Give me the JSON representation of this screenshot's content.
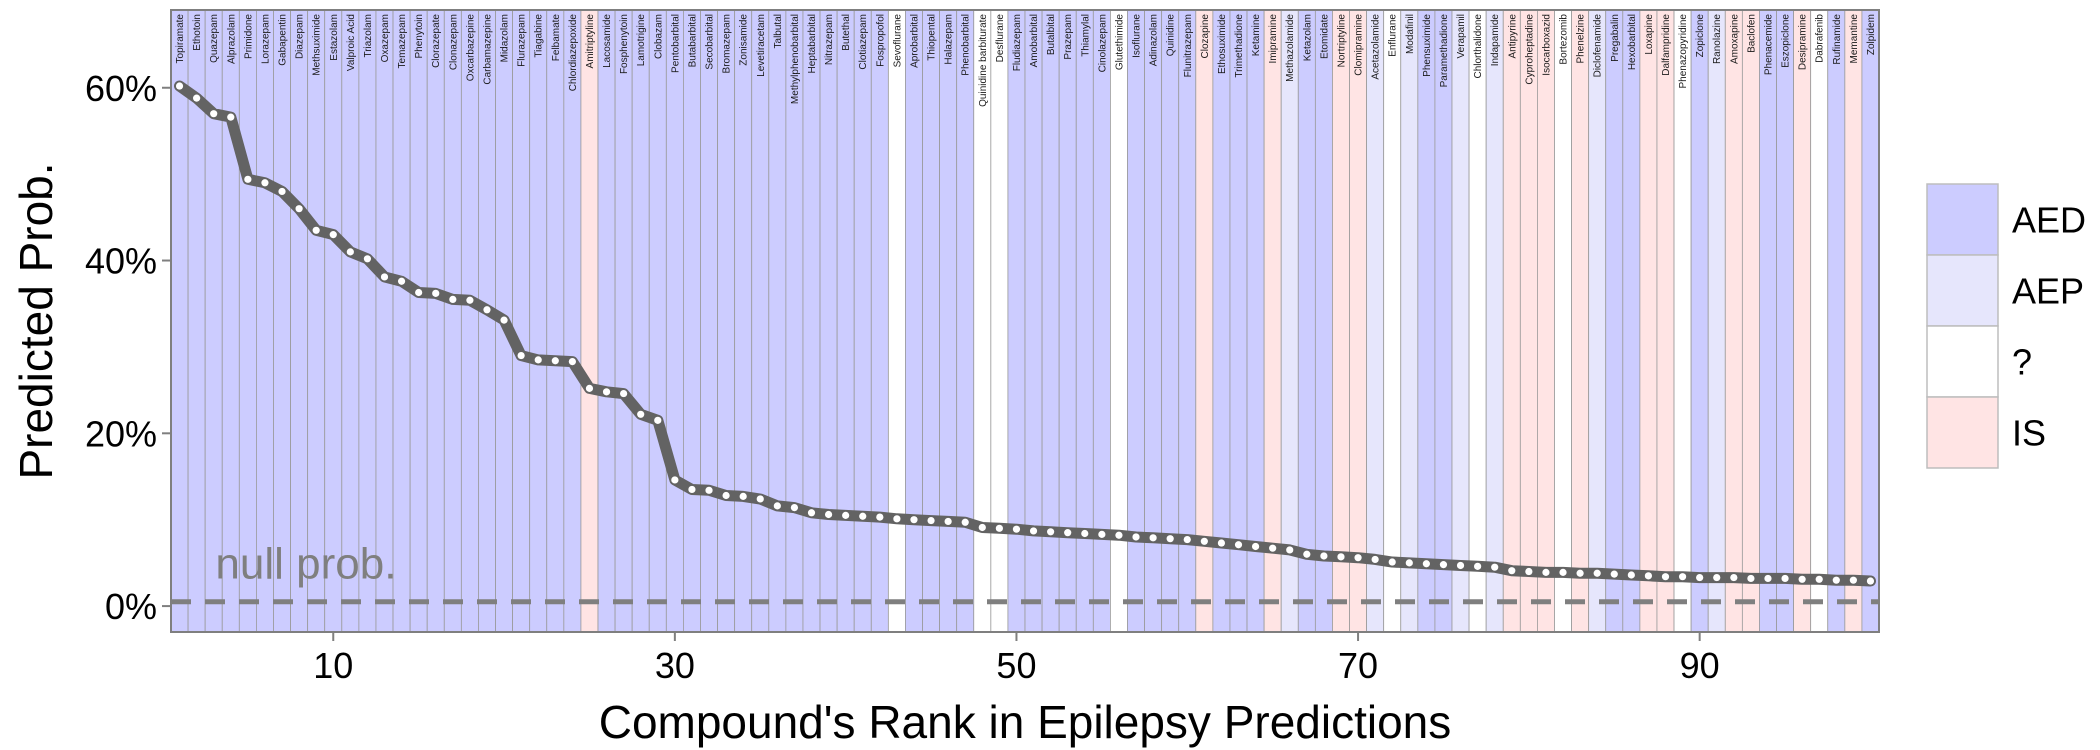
{
  "chart_data": {
    "type": "line",
    "xlabel": "Compound's Rank in Epilepsy Predictions",
    "ylabel": "Predicted Prob.",
    "xlim": [
      0.5,
      100.5
    ],
    "ylim": [
      -0.03,
      0.69
    ],
    "x_ticks": [
      10,
      30,
      50,
      70,
      90
    ],
    "y_ticks": [
      0,
      0.2,
      0.4,
      0.6
    ],
    "y_tick_labels": [
      "0%",
      "20%",
      "40%",
      "60%"
    ],
    "null_prob": 0.005,
    "null_label": "null prob.",
    "legend": {
      "position": "right",
      "items": [
        {
          "key": "AED",
          "label": "AED",
          "color": "#ccccff"
        },
        {
          "key": "AEP",
          "label": "AEP",
          "color": "#e6e6fc"
        },
        {
          "key": "?",
          "label": "?",
          "color": "#ffffff"
        },
        {
          "key": "IS",
          "label": "IS",
          "color": "#ffe4e4"
        }
      ]
    },
    "compounds": [
      {
        "rank": 1,
        "name": "Topiramate",
        "class": "AED",
        "prob": 0.602
      },
      {
        "rank": 2,
        "name": "Ethotoin",
        "class": "AED",
        "prob": 0.588
      },
      {
        "rank": 3,
        "name": "Quazepam",
        "class": "AED",
        "prob": 0.57
      },
      {
        "rank": 4,
        "name": "Alprazolam",
        "class": "AED",
        "prob": 0.566
      },
      {
        "rank": 5,
        "name": "Primidone",
        "class": "AED",
        "prob": 0.494
      },
      {
        "rank": 6,
        "name": "Lorazepam",
        "class": "AED",
        "prob": 0.49
      },
      {
        "rank": 7,
        "name": "Gabapentin",
        "class": "AED",
        "prob": 0.48
      },
      {
        "rank": 8,
        "name": "Diazepam",
        "class": "AED",
        "prob": 0.46
      },
      {
        "rank": 9,
        "name": "Methsuximide",
        "class": "AED",
        "prob": 0.435
      },
      {
        "rank": 10,
        "name": "Estazolam",
        "class": "AED",
        "prob": 0.43
      },
      {
        "rank": 11,
        "name": "Valproic Acid",
        "class": "AED",
        "prob": 0.41
      },
      {
        "rank": 12,
        "name": "Triazolam",
        "class": "AED",
        "prob": 0.402
      },
      {
        "rank": 13,
        "name": "Oxazepam",
        "class": "AED",
        "prob": 0.381
      },
      {
        "rank": 14,
        "name": "Temazepam",
        "class": "AED",
        "prob": 0.376
      },
      {
        "rank": 15,
        "name": "Phenytoin",
        "class": "AED",
        "prob": 0.363
      },
      {
        "rank": 16,
        "name": "Clorazepate",
        "class": "AED",
        "prob": 0.362
      },
      {
        "rank": 17,
        "name": "Clonazepam",
        "class": "AED",
        "prob": 0.355
      },
      {
        "rank": 18,
        "name": "Oxcarbazepine",
        "class": "AED",
        "prob": 0.354
      },
      {
        "rank": 19,
        "name": "Carbamazepine",
        "class": "AED",
        "prob": 0.343
      },
      {
        "rank": 20,
        "name": "Midazolam",
        "class": "AED",
        "prob": 0.331
      },
      {
        "rank": 21,
        "name": "Flurazepam",
        "class": "AED",
        "prob": 0.29
      },
      {
        "rank": 22,
        "name": "Tiagabine",
        "class": "AED",
        "prob": 0.285
      },
      {
        "rank": 23,
        "name": "Felbamate",
        "class": "AED",
        "prob": 0.284
      },
      {
        "rank": 24,
        "name": "Chlordiazepoxide",
        "class": "AED",
        "prob": 0.283
      },
      {
        "rank": 25,
        "name": "Amitriptyline",
        "class": "IS",
        "prob": 0.252
      },
      {
        "rank": 26,
        "name": "Lacosamide",
        "class": "AED",
        "prob": 0.248
      },
      {
        "rank": 27,
        "name": "Fosphenytoin",
        "class": "AED",
        "prob": 0.246
      },
      {
        "rank": 28,
        "name": "Lamotrigine",
        "class": "AED",
        "prob": 0.222
      },
      {
        "rank": 29,
        "name": "Clobazam",
        "class": "AED",
        "prob": 0.215
      },
      {
        "rank": 30,
        "name": "Pentobarbital",
        "class": "AED",
        "prob": 0.146
      },
      {
        "rank": 31,
        "name": "Butabarbital",
        "class": "AED",
        "prob": 0.135
      },
      {
        "rank": 32,
        "name": "Secobarbital",
        "class": "AED",
        "prob": 0.134
      },
      {
        "rank": 33,
        "name": "Bromazepam",
        "class": "AED",
        "prob": 0.128
      },
      {
        "rank": 34,
        "name": "Zonisamide",
        "class": "AED",
        "prob": 0.127
      },
      {
        "rank": 35,
        "name": "Levetiracetam",
        "class": "AED",
        "prob": 0.124
      },
      {
        "rank": 36,
        "name": "Talbutal",
        "class": "AED",
        "prob": 0.116
      },
      {
        "rank": 37,
        "name": "Methylphenobarbital",
        "class": "AED",
        "prob": 0.114
      },
      {
        "rank": 38,
        "name": "Heptabarbital",
        "class": "AED",
        "prob": 0.108
      },
      {
        "rank": 39,
        "name": "Nitrazepam",
        "class": "AED",
        "prob": 0.106
      },
      {
        "rank": 40,
        "name": "Butethal",
        "class": "AED",
        "prob": 0.105
      },
      {
        "rank": 41,
        "name": "Clotiazepam",
        "class": "AED",
        "prob": 0.104
      },
      {
        "rank": 42,
        "name": "Fospropofol",
        "class": "AED",
        "prob": 0.103
      },
      {
        "rank": 43,
        "name": "Sevoflurane",
        "class": "?",
        "prob": 0.101
      },
      {
        "rank": 44,
        "name": "Aprobarbital",
        "class": "AED",
        "prob": 0.1
      },
      {
        "rank": 45,
        "name": "Thiopental",
        "class": "AED",
        "prob": 0.099
      },
      {
        "rank": 46,
        "name": "Halazepam",
        "class": "AED",
        "prob": 0.098
      },
      {
        "rank": 47,
        "name": "Phenobarbital",
        "class": "AED",
        "prob": 0.097
      },
      {
        "rank": 48,
        "name": "Quinidine barbiturate",
        "class": "?",
        "prob": 0.091
      },
      {
        "rank": 49,
        "name": "Desflurane",
        "class": "?",
        "prob": 0.09
      },
      {
        "rank": 50,
        "name": "Fludiazepam",
        "class": "AED",
        "prob": 0.089
      },
      {
        "rank": 51,
        "name": "Amobarbital",
        "class": "AED",
        "prob": 0.087
      },
      {
        "rank": 52,
        "name": "Butalbital",
        "class": "AED",
        "prob": 0.086
      },
      {
        "rank": 53,
        "name": "Prazepam",
        "class": "AED",
        "prob": 0.085
      },
      {
        "rank": 54,
        "name": "Thiamylal",
        "class": "AED",
        "prob": 0.084
      },
      {
        "rank": 55,
        "name": "Cinolazepam",
        "class": "AED",
        "prob": 0.083
      },
      {
        "rank": 56,
        "name": "Glutethimide",
        "class": "?",
        "prob": 0.082
      },
      {
        "rank": 57,
        "name": "Isoflurane",
        "class": "AED",
        "prob": 0.08
      },
      {
        "rank": 58,
        "name": "Adinazolam",
        "class": "AED",
        "prob": 0.079
      },
      {
        "rank": 59,
        "name": "Quinidine",
        "class": "AED",
        "prob": 0.078
      },
      {
        "rank": 60,
        "name": "Flunitrazepam",
        "class": "AED",
        "prob": 0.077
      },
      {
        "rank": 61,
        "name": "Clozapine",
        "class": "IS",
        "prob": 0.075
      },
      {
        "rank": 62,
        "name": "Ethosuximide",
        "class": "AED",
        "prob": 0.073
      },
      {
        "rank": 63,
        "name": "Trimethadione",
        "class": "AED",
        "prob": 0.071
      },
      {
        "rank": 64,
        "name": "Ketamine",
        "class": "AED",
        "prob": 0.069
      },
      {
        "rank": 65,
        "name": "Imipramine",
        "class": "IS",
        "prob": 0.067
      },
      {
        "rank": 66,
        "name": "Methazolamide",
        "class": "AEP",
        "prob": 0.065
      },
      {
        "rank": 67,
        "name": "Ketazolam",
        "class": "AED",
        "prob": 0.06
      },
      {
        "rank": 68,
        "name": "Etomidate",
        "class": "AED",
        "prob": 0.058
      },
      {
        "rank": 69,
        "name": "Nortriptyline",
        "class": "IS",
        "prob": 0.057
      },
      {
        "rank": 70,
        "name": "Clomipramine",
        "class": "IS",
        "prob": 0.056
      },
      {
        "rank": 71,
        "name": "Acetazolamide",
        "class": "AEP",
        "prob": 0.054
      },
      {
        "rank": 72,
        "name": "Enflurane",
        "class": "?",
        "prob": 0.051
      },
      {
        "rank": 73,
        "name": "Modafinil",
        "class": "AEP",
        "prob": 0.05
      },
      {
        "rank": 74,
        "name": "Phensuximide",
        "class": "AED",
        "prob": 0.049
      },
      {
        "rank": 75,
        "name": "Paramethadione",
        "class": "AED",
        "prob": 0.048
      },
      {
        "rank": 76,
        "name": "Verapamil",
        "class": "AEP",
        "prob": 0.047
      },
      {
        "rank": 77,
        "name": "Chlorthalidone",
        "class": "?",
        "prob": 0.046
      },
      {
        "rank": 78,
        "name": "Indapamide",
        "class": "AEP",
        "prob": 0.045
      },
      {
        "rank": 79,
        "name": "Antipyrine",
        "class": "IS",
        "prob": 0.041
      },
      {
        "rank": 80,
        "name": "Cyproheptadine",
        "class": "IS",
        "prob": 0.04
      },
      {
        "rank": 81,
        "name": "Isocarboxazid",
        "class": "IS",
        "prob": 0.039
      },
      {
        "rank": 82,
        "name": "Bortezomib",
        "class": "?",
        "prob": 0.039
      },
      {
        "rank": 83,
        "name": "Phenelzine",
        "class": "IS",
        "prob": 0.038
      },
      {
        "rank": 84,
        "name": "Diclofenamide",
        "class": "AEP",
        "prob": 0.038
      },
      {
        "rank": 85,
        "name": "Pregabalin",
        "class": "AED",
        "prob": 0.037
      },
      {
        "rank": 86,
        "name": "Hexobarbital",
        "class": "AED",
        "prob": 0.036
      },
      {
        "rank": 87,
        "name": "Loxapine",
        "class": "IS",
        "prob": 0.035
      },
      {
        "rank": 88,
        "name": "Dalfampridine",
        "class": "IS",
        "prob": 0.034
      },
      {
        "rank": 89,
        "name": "Phenazopyridine",
        "class": "?",
        "prob": 0.034
      },
      {
        "rank": 90,
        "name": "Zopiclone",
        "class": "AED",
        "prob": 0.033
      },
      {
        "rank": 91,
        "name": "Ranolazine",
        "class": "AEP",
        "prob": 0.033
      },
      {
        "rank": 92,
        "name": "Amoxapine",
        "class": "IS",
        "prob": 0.033
      },
      {
        "rank": 93,
        "name": "Baclofen",
        "class": "IS",
        "prob": 0.032
      },
      {
        "rank": 94,
        "name": "Phenacemide",
        "class": "AED",
        "prob": 0.032
      },
      {
        "rank": 95,
        "name": "Eszopiclone",
        "class": "AED",
        "prob": 0.032
      },
      {
        "rank": 96,
        "name": "Desipramine",
        "class": "IS",
        "prob": 0.031
      },
      {
        "rank": 97,
        "name": "Dabrafenib",
        "class": "?",
        "prob": 0.031
      },
      {
        "rank": 98,
        "name": "Rufinamide",
        "class": "AED",
        "prob": 0.03
      },
      {
        "rank": 99,
        "name": "Memantine",
        "class": "IS",
        "prob": 0.03
      },
      {
        "rank": 100,
        "name": "Zolpidem",
        "class": "AED",
        "prob": 0.029
      }
    ]
  }
}
